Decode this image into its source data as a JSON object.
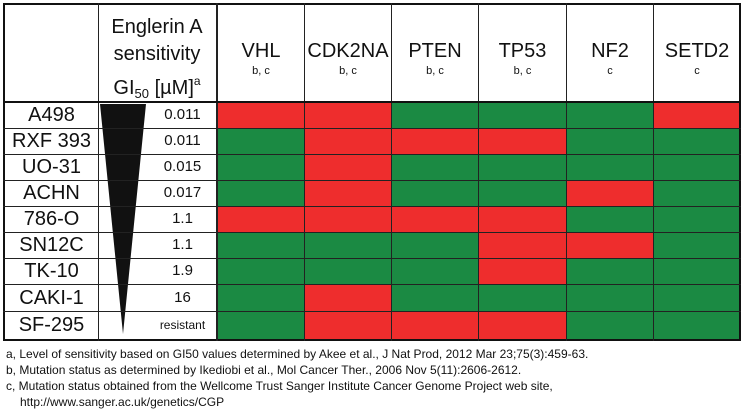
{
  "header": {
    "sens_line1": "Englerin A",
    "sens_line2": "sensitivity",
    "gi": "GI",
    "gi_sub": "50",
    "gi_unit": "[µM]",
    "gi_sup": "a"
  },
  "genes": [
    {
      "name": "VHL",
      "source": "b, c"
    },
    {
      "name": "CDK2NA",
      "source": "b, c"
    },
    {
      "name": "PTEN",
      "source": "b, c"
    },
    {
      "name": "TP53",
      "source": "b, c"
    },
    {
      "name": "NF2",
      "source": "c"
    },
    {
      "name": "SETD2",
      "source": "c"
    }
  ],
  "rows": [
    {
      "cell_line": "A498",
      "gi50": "0.011"
    },
    {
      "cell_line": "RXF 393",
      "gi50": "0.011"
    },
    {
      "cell_line": "UO-31",
      "gi50": "0.015"
    },
    {
      "cell_line": "ACHN",
      "gi50": "0.017"
    },
    {
      "cell_line": "786-O",
      "gi50": "1.1"
    },
    {
      "cell_line": "SN12C",
      "gi50": "1.1"
    },
    {
      "cell_line": "TK-10",
      "gi50": "1.9"
    },
    {
      "cell_line": "CAKI-1",
      "gi50": "16"
    },
    {
      "cell_line": "SF-295",
      "gi50": "resistant"
    }
  ],
  "chart_data": {
    "type": "heatmap",
    "rows": [
      "A498",
      "RXF 393",
      "UO-31",
      "ACHN",
      "786-O",
      "SN12C",
      "TK-10",
      "CAKI-1",
      "SF-295"
    ],
    "columns": [
      "VHL",
      "CDK2NA",
      "PTEN",
      "TP53",
      "NF2",
      "SETD2"
    ],
    "values": [
      [
        1,
        1,
        0,
        0,
        0,
        1
      ],
      [
        0,
        1,
        1,
        1,
        0,
        0
      ],
      [
        0,
        1,
        0,
        0,
        0,
        0
      ],
      [
        0,
        1,
        0,
        0,
        1,
        0
      ],
      [
        1,
        1,
        1,
        1,
        0,
        0
      ],
      [
        0,
        0,
        0,
        1,
        1,
        0
      ],
      [
        0,
        0,
        0,
        1,
        0,
        0
      ],
      [
        0,
        1,
        0,
        0,
        0,
        0
      ],
      [
        0,
        1,
        1,
        1,
        0,
        0
      ]
    ],
    "colors": {
      "1": "#ee2d2d",
      "0": "#1b8a43"
    }
  },
  "colors": {
    "mutated": "#ee2d2d",
    "wildtype": "#1b8a43",
    "wedge": "#111111"
  },
  "footnotes": [
    "a, Level of sensitivity based on GI50 values determined by Akee et al., J Nat Prod, 2012 Mar 23;75(3):459-63.",
    "b, Mutation status as determined by Ikediobi et al., Mol Cancer Ther., 2006 Nov 5(11):2606-2612.",
    "c, Mutation status obtained from the Wellcome Trust Sanger Institute Cancer Genome Project web site,",
    "http://www.sanger.ac.uk/genetics/CGP"
  ]
}
